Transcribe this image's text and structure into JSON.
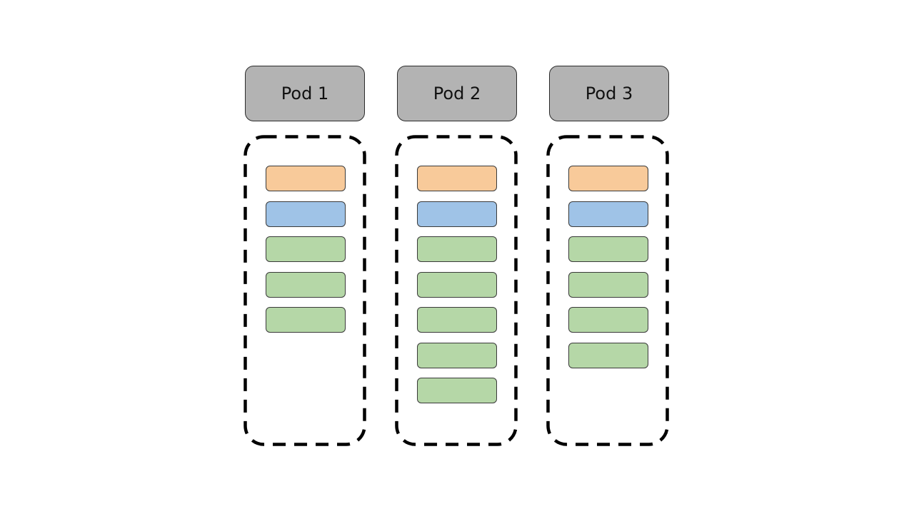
{
  "colors": {
    "header_fill": "#b3b3b3",
    "orange": "#f8ca9a",
    "blue": "#9fc3e7",
    "green": "#b5d7a7",
    "dashed_border": "#000000"
  },
  "pods": [
    {
      "label": "Pod 1",
      "blocks": [
        "orange",
        "blue",
        "green",
        "green",
        "green"
      ]
    },
    {
      "label": "Pod 2",
      "blocks": [
        "orange",
        "blue",
        "green",
        "green",
        "green",
        "green",
        "green"
      ]
    },
    {
      "label": "Pod 3",
      "blocks": [
        "orange",
        "blue",
        "green",
        "green",
        "green",
        "green"
      ]
    }
  ]
}
